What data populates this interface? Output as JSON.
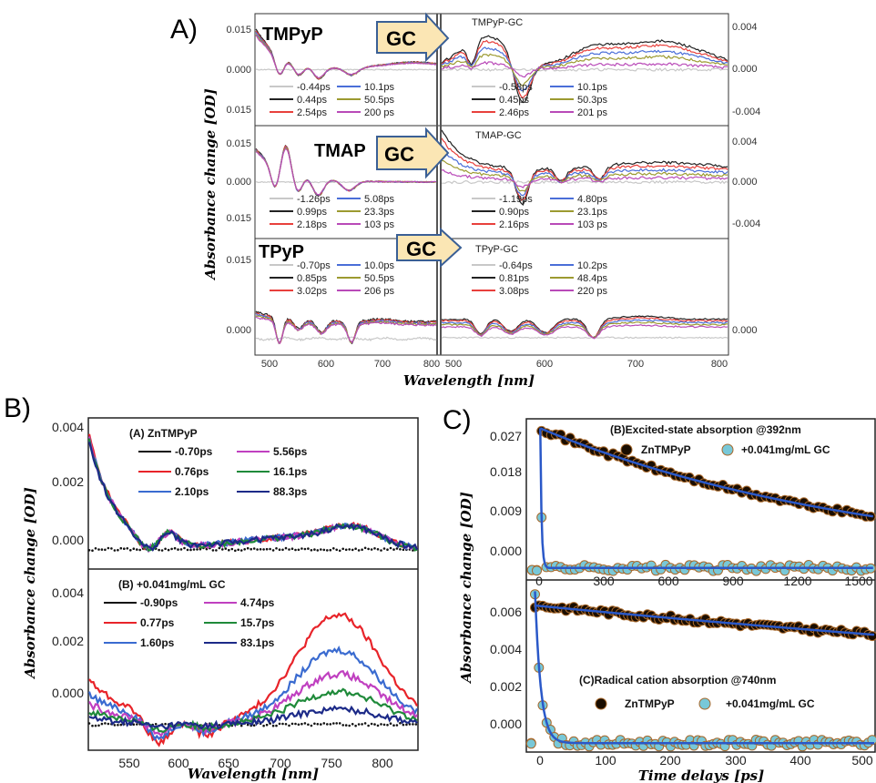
{
  "figure_labels": {
    "A": "A)",
    "B": "B)",
    "C": "C)"
  },
  "colors": {
    "A": [
      "#c8c8c8",
      "#222222",
      "#e8403c",
      "#4a6ed8",
      "#9c9a30",
      "#b94ab8"
    ],
    "B": [
      "#111111",
      "#e8242a",
      "#3a6bd0",
      "#c040c0",
      "#1f8a3a",
      "#1c2a88"
    ],
    "C_fill": [
      "#1a0d00",
      "#78c8d8"
    ],
    "C_edge": [
      "#a8682a",
      "#a8682a"
    ],
    "C_fit": "#2a58c8"
  },
  "chart_data": [
    {
      "id": "A1",
      "type": "line",
      "name": "TMPyP",
      "gc_title": "TMPyP-GC",
      "gc_arrow": "GC",
      "xlim": [
        470,
        800
      ],
      "ylim_left": [
        -0.021,
        0.021
      ],
      "ylim_right": [
        -0.006,
        0.006
      ],
      "left_yticks": [
        "0.015",
        "0.000",
        "0.015"
      ],
      "right_yticks": [
        "0.004",
        "0.000",
        "-0.004"
      ],
      "left_legend": [
        "-0.44ps",
        "0.44ps",
        "2.54ps",
        "10.1ps",
        "50.5ps",
        "200 ps"
      ],
      "right_legend": [
        "-0.58ps",
        "0.45ps",
        "2.46ps",
        "10.1ps",
        "50.3ps",
        "201 ps"
      ]
    },
    {
      "id": "A2",
      "type": "line",
      "name": "TMAP",
      "gc_title": "TMAP-GC",
      "gc_arrow": "GC",
      "xlim": [
        470,
        800
      ],
      "ylim_left": [
        -0.021,
        0.021
      ],
      "ylim_right": [
        -0.006,
        0.006
      ],
      "left_yticks": [
        "0.015",
        "0.000",
        "0.015"
      ],
      "right_yticks": [
        "0.004",
        "0.000",
        "-0.004"
      ],
      "left_legend": [
        "-1.26ps",
        "0.99ps",
        "2.18ps",
        "5.08ps",
        "23.3ps",
        "103 ps"
      ],
      "right_legend": [
        "-1.19ps",
        "0.90ps",
        "2.16ps",
        "4.80ps",
        "23.1ps",
        "103 ps"
      ]
    },
    {
      "id": "A3",
      "type": "line",
      "name": "TPyP",
      "gc_title": "TPyP-GC",
      "gc_arrow": "GC",
      "xlim": [
        470,
        800
      ],
      "ylim_left": [
        -0.003,
        0.02
      ],
      "ylim_right": [
        -0.003,
        0.02
      ],
      "left_yticks": [
        "0.015",
        "0.000"
      ],
      "right_yticks": [
        "0.000"
      ],
      "left_legend": [
        "-0.70ps",
        "0.85ps",
        "3.02ps",
        "10.0ps",
        "50.5ps",
        "206 ps"
      ],
      "right_legend": [
        "-0.64ps",
        "0.81ps",
        "3.08ps",
        "10.2ps",
        "48.4ps",
        "220 ps"
      ],
      "xticks_left": [
        "500",
        "600",
        "700",
        "800"
      ],
      "xticks_right": [
        "500",
        "600",
        "700",
        "800"
      ]
    },
    {
      "id": "B1",
      "type": "line",
      "title": "(A) ZnTMPyP",
      "xlim": [
        510,
        820
      ],
      "ylim": [
        -0.0006,
        0.0043
      ],
      "yticks": [
        "0.004",
        "0.002",
        "0.000"
      ],
      "legend": [
        "-0.70ps",
        "0.76ps",
        "2.10ps",
        "5.56ps",
        "16.1ps",
        "88.3ps"
      ]
    },
    {
      "id": "B2",
      "type": "line",
      "title": "(B) +0.041mg/mL GC",
      "xlim": [
        510,
        820
      ],
      "ylim": [
        -0.0007,
        0.0045
      ],
      "yticks": [
        "0.004",
        "0.002",
        "0.000"
      ],
      "xticks": [
        "550",
        "600",
        "650",
        "700",
        "750",
        "800"
      ],
      "legend": [
        "-0.90ps",
        "0.77ps",
        "1.60ps",
        "4.74ps",
        "15.7ps",
        "83.1ps"
      ]
    },
    {
      "id": "C1",
      "type": "scatter",
      "title": "(B)Excited-state absorption @392nm",
      "xlim": [
        -60,
        1540
      ],
      "ylim": [
        -0.002,
        0.029
      ],
      "yticks": [
        "0.027",
        "0.018",
        "0.009",
        "0.000"
      ],
      "xticks": [
        "0",
        "300",
        "600",
        "900",
        "1200",
        "1500"
      ],
      "series": [
        {
          "name": "ZnTMPyP",
          "y0": 0.0275,
          "tau": 1540
        },
        {
          "name": "+0.041mg/mL GC",
          "y0": 0.0275,
          "tau": 6
        }
      ]
    },
    {
      "id": "C2",
      "type": "scatter",
      "title": "(C)Radical cation absorption @740nm",
      "xlim": [
        -12,
        525
      ],
      "ylim": [
        -0.0003,
        0.0068
      ],
      "yticks": [
        "0.006",
        "0.004",
        "0.002",
        "0.000"
      ],
      "xticks": [
        "0",
        "100",
        "200",
        "300",
        "400",
        "500"
      ],
      "series": [
        {
          "name": "ZnTMPyP",
          "y0": 0.0058,
          "tau": 2200
        },
        {
          "name": "+0.041mg/mL GC",
          "y0": 0.0064,
          "tau": 9
        }
      ]
    }
  ],
  "axis_labels": {
    "A_y": "Absorbance change [OD]",
    "A_x": "Wavelength [nm]",
    "B_y": "Absorbance change [OD]",
    "B_x": "Wavelength [nm]",
    "C_y": "Absorbance change [OD]",
    "C_x": "Time delays [ps]"
  }
}
